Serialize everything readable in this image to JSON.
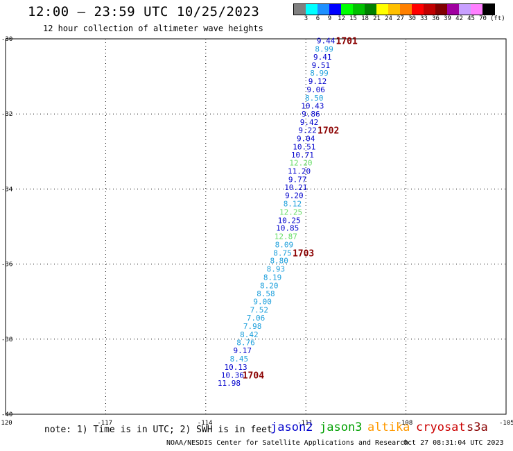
{
  "header": {
    "title": "12:00 – 23:59 UTC 10/25/2023",
    "subtitle": "12 hour collection of altimeter wave heights"
  },
  "color_scale": {
    "labels": [
      "3",
      "6",
      "9",
      "12",
      "15",
      "18",
      "21",
      "24",
      "27",
      "30",
      "33",
      "36",
      "39",
      "42",
      "45",
      "70"
    ],
    "unit": "(ft)",
    "colors": [
      "#808080",
      "#00ffff",
      "#1e90ff",
      "#0000ff",
      "#00ff00",
      "#00c000",
      "#008000",
      "#ffff00",
      "#ffc000",
      "#ff8000",
      "#ff0000",
      "#c00000",
      "#800000",
      "#a000a0",
      "#c8a0ff",
      "#ff80ff",
      "#000000"
    ]
  },
  "map": {
    "lon_min": -120,
    "lon_max": -105,
    "lat_min": -40,
    "lat_max": -30,
    "lon_ticks": [
      "-120",
      "-117",
      "-114",
      "-111",
      "-108",
      "-105"
    ],
    "lat_ticks": [
      "-30",
      "-32",
      "-34",
      "-36",
      "-38",
      "-40"
    ]
  },
  "track": {
    "color_default": "#0000cc",
    "points": [
      {
        "lon": -110.4,
        "lat": -30.05,
        "val": "9.44",
        "c": "#0000cc"
      },
      {
        "lon": -110.45,
        "lat": -30.27,
        "val": "8.99",
        "c": "#1ea0dc"
      },
      {
        "lon": -110.5,
        "lat": -30.48,
        "val": "9.41",
        "c": "#0000cc"
      },
      {
        "lon": -110.55,
        "lat": -30.7,
        "val": "9.51",
        "c": "#0000cc"
      },
      {
        "lon": -110.6,
        "lat": -30.91,
        "val": "8.99",
        "c": "#1ea0dc"
      },
      {
        "lon": -110.65,
        "lat": -31.13,
        "val": "9.12",
        "c": "#0000cc"
      },
      {
        "lon": -110.7,
        "lat": -31.35,
        "val": "9.06",
        "c": "#0000cc"
      },
      {
        "lon": -110.75,
        "lat": -31.57,
        "val": "8.50",
        "c": "#1ea0dc"
      },
      {
        "lon": -110.8,
        "lat": -31.78,
        "val": "10.43",
        "c": "#0000cc"
      },
      {
        "lon": -110.85,
        "lat": -32.0,
        "val": "9.86",
        "c": "#0000cc"
      },
      {
        "lon": -110.9,
        "lat": -32.22,
        "val": "9.42",
        "c": "#0000cc"
      },
      {
        "lon": -110.95,
        "lat": -32.43,
        "val": "9.22",
        "c": "#0000cc"
      },
      {
        "lon": -111.0,
        "lat": -32.65,
        "val": "9.04",
        "c": "#0000cc"
      },
      {
        "lon": -111.05,
        "lat": -32.87,
        "val": "10.51",
        "c": "#0000cc"
      },
      {
        "lon": -111.1,
        "lat": -33.09,
        "val": "10.71",
        "c": "#0000cc"
      },
      {
        "lon": -111.15,
        "lat": -33.3,
        "val": "12.20",
        "c": "#66dd66"
      },
      {
        "lon": -111.2,
        "lat": -33.52,
        "val": "11.20",
        "c": "#0000cc"
      },
      {
        "lon": -111.25,
        "lat": -33.74,
        "val": "9.77",
        "c": "#0000cc"
      },
      {
        "lon": -111.3,
        "lat": -33.96,
        "val": "10.21",
        "c": "#0000cc"
      },
      {
        "lon": -111.35,
        "lat": -34.17,
        "val": "9.20",
        "c": "#0000cc"
      },
      {
        "lon": -111.4,
        "lat": -34.39,
        "val": "8.12",
        "c": "#1ea0dc"
      },
      {
        "lon": -111.45,
        "lat": -34.61,
        "val": "12.25",
        "c": "#66dd66"
      },
      {
        "lon": -111.5,
        "lat": -34.83,
        "val": "10.25",
        "c": "#0000cc"
      },
      {
        "lon": -111.55,
        "lat": -35.04,
        "val": "10.85",
        "c": "#0000cc"
      },
      {
        "lon": -111.6,
        "lat": -35.26,
        "val": "12.87",
        "c": "#66dd66"
      },
      {
        "lon": -111.65,
        "lat": -35.48,
        "val": "8.09",
        "c": "#1ea0dc"
      },
      {
        "lon": -111.7,
        "lat": -35.7,
        "val": "8.75",
        "c": "#1ea0dc"
      },
      {
        "lon": -111.8,
        "lat": -35.91,
        "val": "8.80",
        "c": "#1ea0dc"
      },
      {
        "lon": -111.9,
        "lat": -36.13,
        "val": "8.93",
        "c": "#1ea0dc"
      },
      {
        "lon": -112.0,
        "lat": -36.35,
        "val": "8.19",
        "c": "#1ea0dc"
      },
      {
        "lon": -112.1,
        "lat": -36.57,
        "val": "8.20",
        "c": "#1ea0dc"
      },
      {
        "lon": -112.2,
        "lat": -36.78,
        "val": "8.58",
        "c": "#1ea0dc"
      },
      {
        "lon": -112.3,
        "lat": -37.0,
        "val": "9.00",
        "c": "#1ea0dc"
      },
      {
        "lon": -112.4,
        "lat": -37.22,
        "val": "7.52",
        "c": "#1ea0dc"
      },
      {
        "lon": -112.5,
        "lat": -37.43,
        "val": "7.06",
        "c": "#1ea0dc"
      },
      {
        "lon": -112.6,
        "lat": -37.65,
        "val": "7.98",
        "c": "#1ea0dc"
      },
      {
        "lon": -112.7,
        "lat": -37.87,
        "val": "8.42",
        "c": "#1ea0dc"
      },
      {
        "lon": -112.8,
        "lat": -38.09,
        "val": "8.76",
        "c": "#1ea0dc"
      },
      {
        "lon": -112.9,
        "lat": -38.3,
        "val": "9.17",
        "c": "#0000cc"
      },
      {
        "lon": -113.0,
        "lat": -38.52,
        "val": "8.45",
        "c": "#1ea0dc"
      },
      {
        "lon": -113.1,
        "lat": -38.74,
        "val": "10.13",
        "c": "#0000cc"
      },
      {
        "lon": -113.2,
        "lat": -38.96,
        "val": "10.36",
        "c": "#0000cc"
      },
      {
        "lon": -113.3,
        "lat": -39.17,
        "val": "11.98",
        "c": "#0000cc"
      }
    ],
    "time_labels": [
      {
        "text": "1701",
        "lon": -110.1,
        "lat": -30.05
      },
      {
        "text": "1702",
        "lon": -110.65,
        "lat": -32.43
      },
      {
        "text": "1703",
        "lon": -111.4,
        "lat": -35.7
      },
      {
        "text": "1704",
        "lon": -112.9,
        "lat": -38.96
      }
    ]
  },
  "footer": {
    "note": "note: 1) Time is in UTC; 2) SWH is in feet",
    "satellites": [
      {
        "name": "jason2",
        "color": "#0000cc"
      },
      {
        "name": "jason3",
        "color": "#00a000"
      },
      {
        "name": "altika",
        "color": "#ff9900"
      },
      {
        "name": "cryosat",
        "color": "#cc0000"
      },
      {
        "name": "s3a",
        "color": "#880000"
      }
    ],
    "credit": "NOAA/NESDIS Center for Satellite Applications and Research",
    "timestamp": "Oct 27 08:31:04 UTC 2023"
  }
}
